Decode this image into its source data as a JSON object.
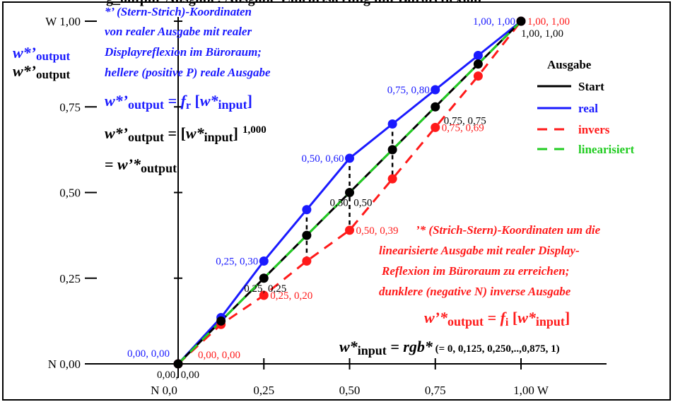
{
  "chart_data": {
    "type": "line",
    "title": "g_output-Ausgabe: Ausgabe-Linearisierung mit Büroreflexion",
    "x_ticks": [
      "N 0,0",
      "0,25",
      "0,50",
      "0,75",
      "1,00  W"
    ],
    "y_ticks": [
      "N 0,00",
      "0,25",
      "0,50",
      "0,75",
      "W 1,00"
    ],
    "xlim": [
      0,
      1
    ],
    "ylim": [
      0,
      1
    ],
    "series": [
      {
        "name": "Start",
        "color": "#000000",
        "dash": false,
        "x": [
          0,
          0.125,
          0.25,
          0.375,
          0.5,
          0.625,
          0.75,
          0.875,
          1
        ],
        "y": [
          0,
          0.125,
          0.25,
          0.375,
          0.5,
          0.625,
          0.75,
          0.875,
          1
        ]
      },
      {
        "name": "real",
        "color": "#1a1aff",
        "dash": false,
        "x": [
          0,
          0.125,
          0.25,
          0.375,
          0.5,
          0.625,
          0.75,
          0.875,
          1
        ],
        "y": [
          0,
          0.135,
          0.3,
          0.45,
          0.6,
          0.7,
          0.8,
          0.9,
          1
        ]
      },
      {
        "name": "invers",
        "color": "#ff1a1a",
        "dash": true,
        "x": [
          0,
          0.125,
          0.25,
          0.375,
          0.5,
          0.625,
          0.75,
          0.875,
          1
        ],
        "y": [
          0,
          0.115,
          0.2,
          0.3,
          0.39,
          0.54,
          0.69,
          0.84,
          1
        ]
      },
      {
        "name": "linearisiert",
        "color": "#22cc22",
        "dash": true,
        "x": [
          0,
          1
        ],
        "y": [
          0,
          1
        ]
      }
    ],
    "point_labels": [
      {
        "text": "0,00, 0,00",
        "color": "#1a1aff",
        "x": 0,
        "y": 0,
        "pos": "upper-left"
      },
      {
        "text": "0,00, 0,00",
        "color": "#ff1a1a",
        "x": 0,
        "y": 0,
        "pos": "upper-right"
      },
      {
        "text": "0,00, 0,00",
        "color": "#000000",
        "x": 0,
        "y": 0,
        "pos": "below"
      },
      {
        "text": "0,25, 0,30",
        "color": "#1a1aff",
        "x": 0.25,
        "y": 0.3,
        "pos": "left"
      },
      {
        "text": "0,25, 0,25",
        "color": "#000000",
        "x": 0.25,
        "y": 0.25,
        "pos": "lower"
      },
      {
        "text": "0,25, 0,20",
        "color": "#ff1a1a",
        "x": 0.25,
        "y": 0.2,
        "pos": "right"
      },
      {
        "text": "0,50, 0,60",
        "color": "#1a1aff",
        "x": 0.5,
        "y": 0.6,
        "pos": "left"
      },
      {
        "text": "0,50, 0,50",
        "color": "#000000",
        "x": 0.5,
        "y": 0.5,
        "pos": "lower"
      },
      {
        "text": "0,50, 0,39",
        "color": "#ff1a1a",
        "x": 0.5,
        "y": 0.39,
        "pos": "right"
      },
      {
        "text": "0,75, 0,80",
        "color": "#1a1aff",
        "x": 0.75,
        "y": 0.8,
        "pos": "left"
      },
      {
        "text": "0,75, 0,75",
        "color": "#000000",
        "x": 0.75,
        "y": 0.75,
        "pos": "upper-left"
      },
      {
        "text": "0,75, 0,69",
        "color": "#ff1a1a",
        "x": 0.75,
        "y": 0.69,
        "pos": "right"
      },
      {
        "text": "1,00, 1,00",
        "color": "#1a1aff",
        "x": 1,
        "y": 1,
        "pos": "left"
      },
      {
        "text": "1,00, 1,00",
        "color": "#ff1a1a",
        "x": 1,
        "y": 1,
        "pos": "right"
      },
      {
        "text": "1,00, 1,00",
        "color": "#000000",
        "x": 1,
        "y": 1,
        "pos": "below"
      }
    ],
    "legend": {
      "title": "Ausgabe",
      "placement": "right",
      "entries": [
        "Start",
        "real",
        "invers",
        "linearisiert"
      ]
    }
  },
  "y_axis_label": {
    "blue": "w*’",
    "black": "w*’",
    "sub": "output"
  },
  "blue_notes": [
    "*’ (Stern-Strich)-Koordinaten",
    "von realer Ausgabe mit realer",
    "Displayreflexion im Büroraum;",
    "hellere (positive P) reale Ausgabe"
  ],
  "formula_blue": {
    "lhs": "w*’",
    "sub": "output",
    "eq": " = ",
    "fn": "f",
    "fsub": "r",
    "arg": "w*",
    "argsub": "input"
  },
  "formula_black1": {
    "lhs": "w*’",
    "sub": "output",
    "eq": " = [",
    "arg": "w*",
    "argsub": "input",
    "close": "]",
    "exp": "1,000"
  },
  "formula_black2": {
    "eq": "= ",
    "lhs": "w’*",
    "sub": "output"
  },
  "red_notes": [
    "’* (Strich-Stern)-Koordinaten um die",
    "linearisierte Ausgabe mit realer Display-",
    "Reflexion im Büroraum zu erreichen;",
    "dunklere (negative N) inverse Ausgabe"
  ],
  "formula_red": {
    "lhs": "w’*",
    "sub": "output",
    "eq": " = ",
    "fn": "f",
    "fsub": "i",
    "arg": "w*",
    "argsub": "input"
  },
  "formula_input": {
    "lhs": "w*",
    "sub": "input",
    "eq": " = ",
    "rhs": "rgb*",
    "note": " (= 0, 0,125, 0,250,..,0,875, 1)"
  }
}
